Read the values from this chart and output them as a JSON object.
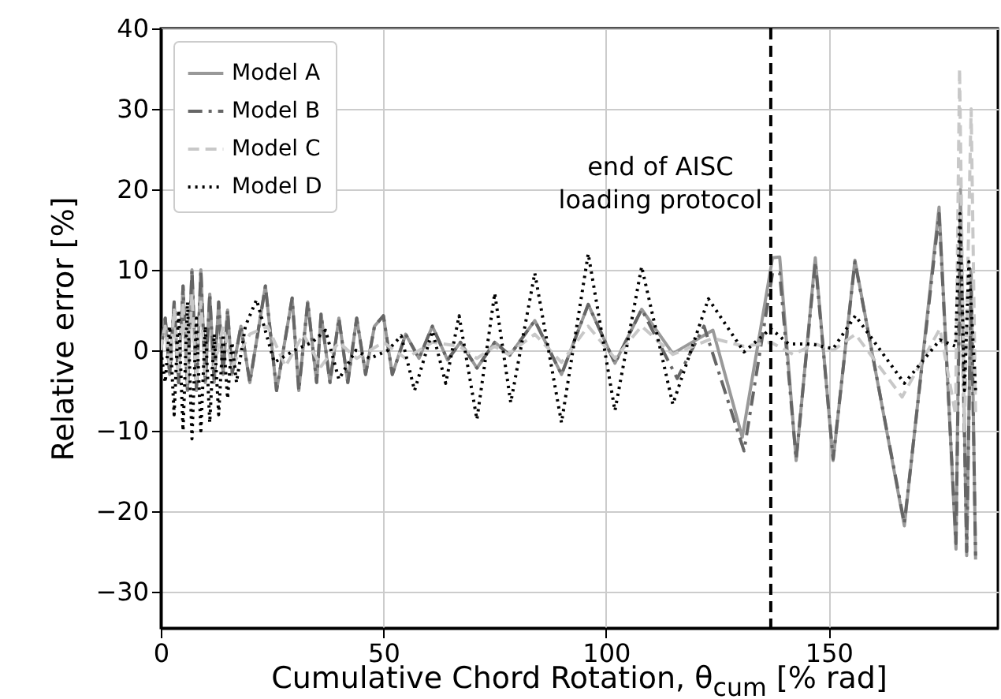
{
  "chart_data": {
    "type": "line",
    "xlabel": "Cumulative Chord Rotation, θ$_{cum}$ [% rad]",
    "ylabel": "Relative error [%]",
    "xlim": [
      0,
      188
    ],
    "ylim": [
      -34.5,
      40
    ],
    "xticks": [
      0,
      50,
      100,
      150
    ],
    "yticks": [
      -30,
      -20,
      -10,
      0,
      10,
      20,
      30,
      40
    ],
    "grid": true,
    "legend": "top left",
    "ref_lines": [
      {
        "axis": "x",
        "value": 137,
        "label": "end of AISC\nloading protocol",
        "color": "#000000",
        "line_style": "dashed"
      }
    ],
    "series": [
      {
        "name": "Model A",
        "color": "#999999",
        "line_style": "solid",
        "x": [
          0,
          1,
          2,
          3,
          4,
          5,
          6,
          7,
          8,
          9,
          10,
          11,
          12,
          13,
          14,
          15,
          16,
          18,
          20,
          23.5,
          26,
          29.5,
          31,
          33,
          35,
          36,
          38,
          40,
          42,
          44,
          46,
          48,
          50,
          52,
          55,
          58,
          61,
          64.4,
          67.3,
          71,
          75,
          78.4,
          84,
          90,
          96,
          102,
          108,
          115,
          124,
          130.6,
          137.4,
          139,
          142.7,
          147,
          151,
          155.9,
          167,
          174.8,
          178.6,
          179.6,
          181,
          182,
          183
        ],
        "values": [
          0,
          4,
          -3,
          6,
          -4,
          8,
          -5,
          10,
          -5,
          10,
          -4,
          7,
          -4,
          6,
          -3,
          5,
          -3,
          3,
          -4,
          8,
          -5,
          6.5,
          -5,
          6,
          -4,
          4.5,
          -4,
          4,
          -4,
          4,
          -3,
          3,
          4.3,
          -3,
          2,
          -1,
          3,
          -1.2,
          1,
          -2.2,
          1,
          -0.6,
          3.7,
          -3,
          5.7,
          -1.6,
          5.1,
          -0.4,
          2.5,
          -10.8,
          11.5,
          11.6,
          -13.7,
          11.5,
          -13.7,
          11.2,
          -21.8,
          17.8,
          -24.7,
          20,
          -25.5,
          10,
          -26
        ]
      },
      {
        "name": "Model B",
        "color": "#666666",
        "line_style": "dashdot",
        "x": [
          0,
          1,
          2,
          3,
          4,
          5,
          6,
          7,
          8,
          9,
          10,
          11,
          12,
          13,
          14,
          15,
          16,
          18,
          20,
          23.5,
          26,
          29.5,
          31,
          33,
          35,
          36,
          38,
          40,
          42,
          44,
          46,
          48,
          50,
          52,
          55,
          58,
          61,
          64.4,
          67.3,
          71,
          75,
          78.4,
          84,
          90,
          96,
          102,
          108,
          116,
          122,
          131,
          137.4,
          139,
          142.7,
          147,
          151,
          155.9,
          167,
          174.8,
          178.6,
          179.6,
          181,
          182,
          183
        ],
        "values": [
          0,
          4,
          -3,
          6,
          -4,
          8,
          -5,
          10,
          -5,
          10,
          -4,
          7,
          -4,
          6,
          -3,
          5,
          -3,
          3,
          -4,
          8,
          -5,
          6.5,
          -5,
          6,
          -4,
          4.5,
          -4,
          4,
          -4,
          4,
          -3,
          3,
          4.3,
          -3,
          2,
          -1,
          3,
          -1.2,
          1,
          -2.2,
          1,
          -0.6,
          3.7,
          -3,
          5.7,
          -1.6,
          5.1,
          -3.5,
          3,
          -12.5,
          9.6,
          9.6,
          -13.5,
          11,
          -13.5,
          11,
          -21.5,
          17,
          -24,
          15,
          -25,
          8,
          -25.5
        ]
      },
      {
        "name": "Model C",
        "color": "#c8c8c8",
        "line_style": "dashed",
        "x": [
          0,
          1,
          2,
          3,
          4,
          5,
          6,
          7,
          8,
          9,
          10,
          12,
          14,
          16,
          20,
          24,
          28,
          32,
          36,
          40,
          44,
          50,
          55,
          61,
          67,
          71,
          75,
          78,
          84,
          90,
          96,
          102,
          108,
          115,
          124,
          131,
          137,
          142,
          147,
          151,
          156,
          166.5,
          175,
          178.5,
          179.4,
          180.5,
          182,
          183
        ],
        "values": [
          0,
          3,
          -2,
          5,
          -3,
          6,
          -4,
          7,
          -4,
          6,
          -3,
          -2,
          3,
          -2,
          2,
          3,
          -2,
          2,
          -2,
          1,
          -1,
          1,
          -1,
          1,
          0.5,
          -1,
          0.5,
          -0.5,
          2,
          -1.5,
          3,
          -1,
          3,
          -0.5,
          1.5,
          0.5,
          1,
          -0.5,
          0.8,
          0,
          2,
          -5.8,
          2.7,
          -8,
          35,
          -10,
          30,
          -8
        ]
      },
      {
        "name": "Model D",
        "color": "#000000",
        "line_style": "dotted",
        "x": [
          0,
          1,
          2,
          3,
          4,
          5,
          6,
          7,
          8,
          9,
          10,
          11,
          12,
          13,
          14,
          15,
          16,
          17,
          19,
          21.5,
          25.5,
          30,
          34,
          37,
          40,
          43.8,
          47,
          51,
          54,
          57,
          61,
          64,
          67,
          71,
          75,
          78.6,
          84,
          90,
          96,
          102,
          108,
          115,
          123,
          131,
          137,
          141,
          146,
          151,
          156,
          167,
          175,
          178.5,
          179.5,
          180.5,
          181.5,
          183
        ],
        "values": [
          0,
          -4,
          3,
          -8,
          5,
          -10,
          6,
          -11,
          4,
          -10,
          3,
          -9,
          2,
          -8,
          2,
          -6,
          1,
          -4,
          3,
          6.3,
          -1.5,
          0,
          1,
          2.5,
          -3.6,
          0,
          -1,
          0,
          1.8,
          -5,
          2.4,
          -4.1,
          4.3,
          -8.6,
          7.1,
          -6.5,
          9.6,
          -9,
          12,
          -7.5,
          10.4,
          -6.7,
          6.4,
          -0.2,
          2.7,
          0.8,
          0.8,
          0.2,
          4.3,
          -4.1,
          1.3,
          0.5,
          17,
          -5,
          11,
          -5
        ]
      }
    ]
  }
}
